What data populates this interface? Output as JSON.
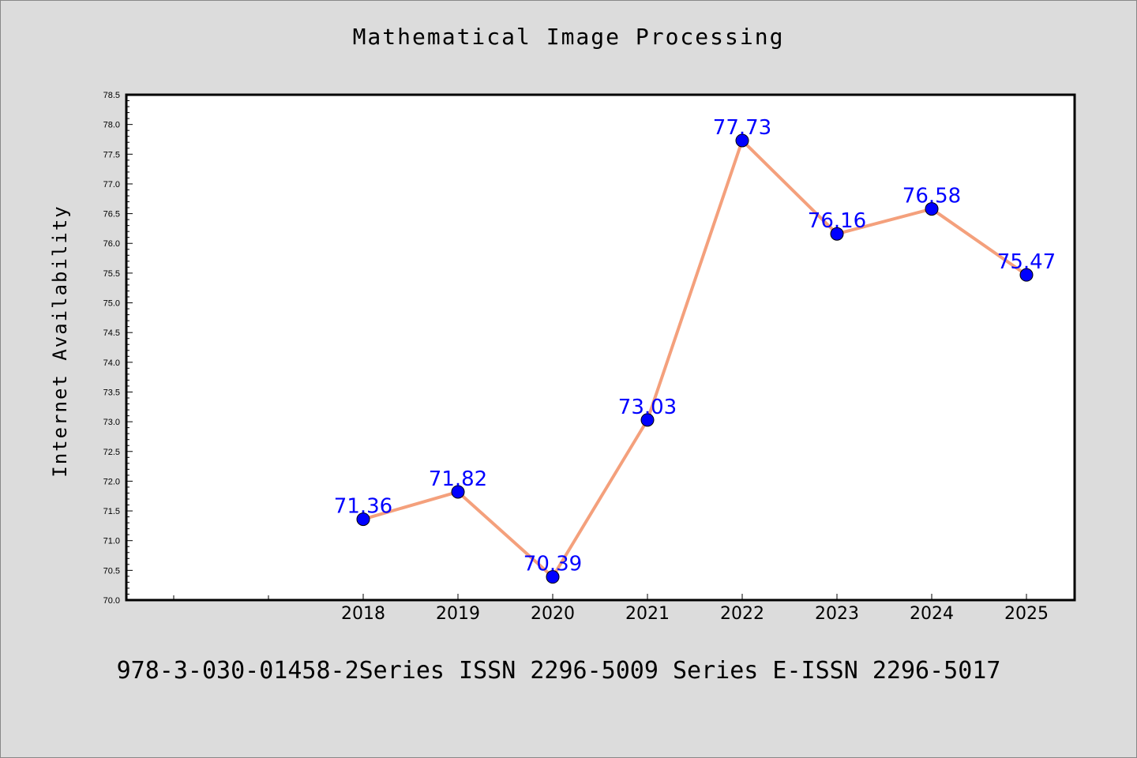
{
  "chart_data": {
    "type": "line",
    "title": "Mathematical Image Processing",
    "ylabel": "Internet Availability",
    "xlabel": "",
    "x": [
      "2018",
      "2019",
      "2020",
      "2021",
      "2022",
      "2023",
      "2024",
      "2025"
    ],
    "series": [
      {
        "values": [
          71.36,
          71.82,
          70.39,
          73.03,
          77.73,
          76.16,
          76.58,
          75.47
        ],
        "labels": [
          "71.36",
          "71.82",
          "70.39",
          "73.03",
          "77.73",
          "76.16",
          "76.58",
          "75.47"
        ]
      }
    ],
    "ylim": [
      70.0,
      78.5
    ],
    "yticks": [
      "70.0",
      "70.5",
      "71.0",
      "71.5",
      "72.0",
      "72.5",
      "73.0",
      "73.5",
      "74.0",
      "74.5",
      "75.0",
      "75.5",
      "76.0",
      "76.5",
      "77.0",
      "77.5",
      "78.0",
      "78.5"
    ],
    "grid": false,
    "colors": {
      "line": "#f4a07c",
      "marker": "#0000ff",
      "label": "#0000ff",
      "background": "#dcdcdc",
      "plot_area": "#ffffff"
    }
  },
  "footer": "978-3-030-01458-2Series ISSN 2296-5009 Series E-ISSN 2296-5017"
}
